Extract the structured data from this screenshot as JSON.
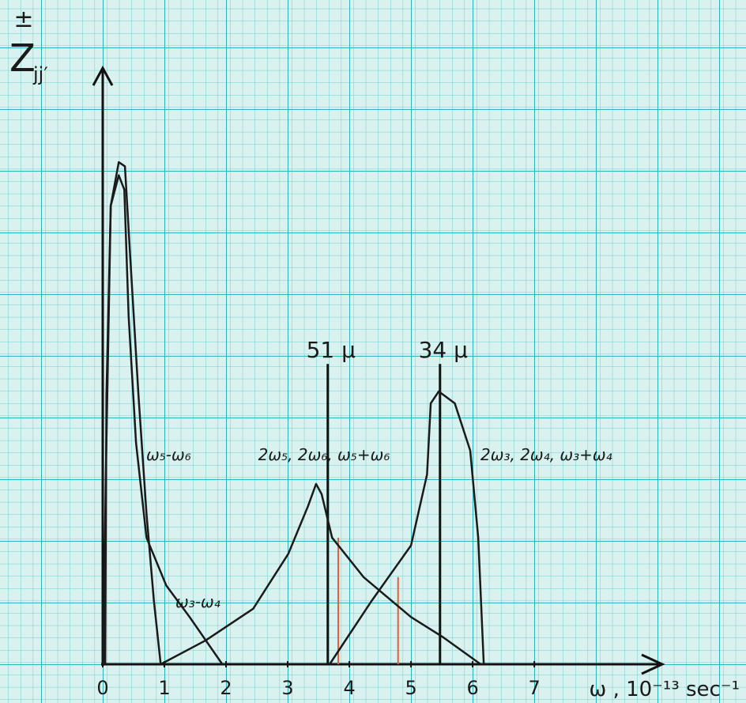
{
  "chart_data": {
    "type": "line",
    "ylabel_top": "±",
    "ylabel": "Z",
    "ylabel_sub": "jj′",
    "xlabel": "ω ,  10⁻¹³ sec⁻¹",
    "xlim": [
      0,
      9.1
    ],
    "xticks": [
      0,
      1,
      2,
      3,
      4,
      5,
      6,
      7
    ],
    "ylim": [
      0,
      10
    ],
    "color": "#1a1a1a",
    "series": [
      {
        "name": "ω₅-ω₆",
        "x": [
          0.04,
          0.06,
          0.13,
          0.26,
          0.36,
          0.45,
          0.58,
          0.71,
          0.83,
          0.94
        ],
        "values": [
          0,
          4.5,
          7.68,
          8.41,
          8.34,
          6.75,
          4.5,
          2.52,
          1.06,
          0
        ]
      },
      {
        "name": "ω₃-ω₄",
        "x": [
          0.01,
          0.05,
          0.13,
          0.26,
          0.35,
          0.42,
          0.54,
          0.71,
          1.03,
          1.41,
          1.94
        ],
        "values": [
          0,
          3.18,
          7.68,
          8.19,
          7.95,
          5.83,
          3.71,
          2.12,
          1.32,
          0.79,
          0
        ]
      },
      {
        "name": "2ω₅, 2ω₆, ω₅+ω₆",
        "x": [
          0.94,
          1.67,
          2.44,
          3.01,
          3.33,
          3.46,
          3.55,
          3.72,
          4.23,
          5.0,
          5.51,
          6.13
        ],
        "values": [
          0,
          0.4,
          0.93,
          1.85,
          2.65,
          3.02,
          2.85,
          2.12,
          1.46,
          0.79,
          0.46,
          0
        ]
      },
      {
        "name": "2ω₃, 2ω₄, ω₃+ω₄",
        "x": [
          3.68,
          4.36,
          5.0,
          5.26,
          5.32,
          5.45,
          5.71,
          5.96,
          6.09,
          6.18
        ],
        "values": [
          0,
          1.06,
          1.99,
          3.18,
          4.37,
          4.57,
          4.37,
          3.58,
          2.12,
          0
        ]
      }
    ],
    "markers": [
      {
        "label": "51 μ",
        "x": 3.65,
        "value": 5.03
      },
      {
        "label": "34 μ",
        "x": 5.47,
        "value": 5.03
      }
    ],
    "red_lines": {
      "color": "#e0603a",
      "x": [
        3.82,
        4.79
      ],
      "values": [
        2.12,
        1.46
      ]
    }
  }
}
